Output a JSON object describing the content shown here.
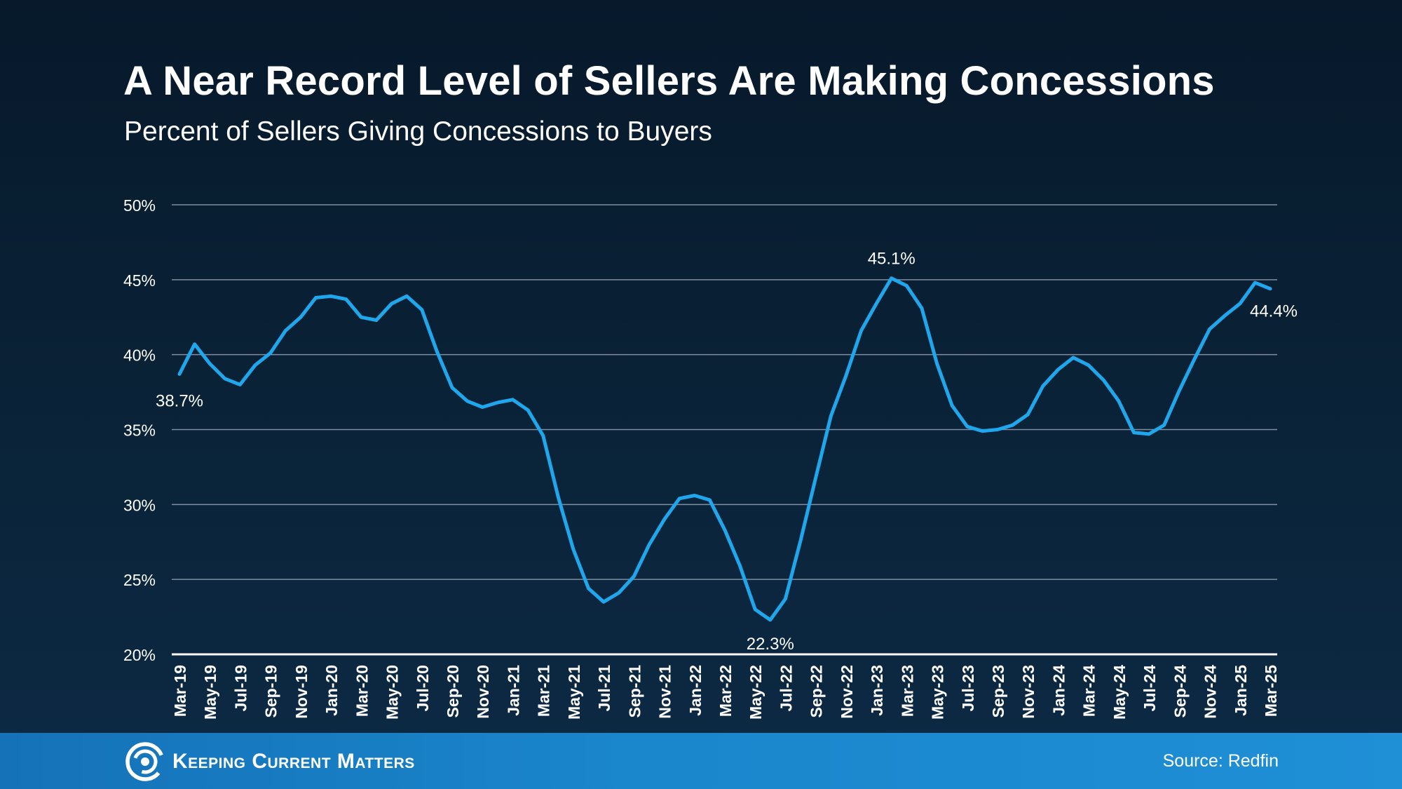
{
  "chart_data": {
    "type": "line",
    "title": "A Near Record Level of Sellers Are Making Concessions",
    "subtitle": "Percent of Sellers Giving Concessions to Buyers",
    "xlabel": "",
    "ylabel": "",
    "ylim": [
      20,
      50
    ],
    "yticks": [
      "20%",
      "25%",
      "30%",
      "35%",
      "40%",
      "45%",
      "50%"
    ],
    "ytick_values": [
      20,
      25,
      30,
      35,
      40,
      45,
      50
    ],
    "grid": true,
    "line_color": "#1ea7ec",
    "x": [
      "Mar-19",
      "Apr-19",
      "May-19",
      "Jun-19",
      "Jul-19",
      "Aug-19",
      "Sep-19",
      "Oct-19",
      "Nov-19",
      "Dec-19",
      "Jan-20",
      "Feb-20",
      "Mar-20",
      "Apr-20",
      "May-20",
      "Jun-20",
      "Jul-20",
      "Aug-20",
      "Sep-20",
      "Oct-20",
      "Nov-20",
      "Dec-20",
      "Jan-21",
      "Feb-21",
      "Mar-21",
      "Apr-21",
      "May-21",
      "Jun-21",
      "Jul-21",
      "Aug-21",
      "Sep-21",
      "Oct-21",
      "Nov-21",
      "Dec-21",
      "Jan-22",
      "Feb-22",
      "Mar-22",
      "Apr-22",
      "May-22",
      "Jun-22",
      "Jul-22",
      "Aug-22",
      "Sep-22",
      "Oct-22",
      "Nov-22",
      "Dec-22",
      "Jan-23",
      "Feb-23",
      "Mar-23",
      "Apr-23",
      "May-23",
      "Jun-23",
      "Jul-23",
      "Aug-23",
      "Sep-23",
      "Oct-23",
      "Nov-23",
      "Dec-23",
      "Jan-24",
      "Feb-24",
      "Mar-24",
      "Apr-24",
      "May-24",
      "Jun-24",
      "Jul-24",
      "Aug-24",
      "Sep-24",
      "Oct-24",
      "Nov-24",
      "Dec-24",
      "Jan-25",
      "Feb-25",
      "Mar-25"
    ],
    "xtick_labels": [
      "Mar-19",
      "May-19",
      "Jul-19",
      "Sep-19",
      "Nov-19",
      "Jan-20",
      "Mar-20",
      "May-20",
      "Jul-20",
      "Sep-20",
      "Nov-20",
      "Jan-21",
      "Mar-21",
      "May-21",
      "Jul-21",
      "Sep-21",
      "Nov-21",
      "Jan-22",
      "Mar-22",
      "May-22",
      "Jul-22",
      "Sep-22",
      "Nov-22",
      "Jan-23",
      "Mar-23",
      "May-23",
      "Jul-23",
      "Sep-23",
      "Nov-23",
      "Jan-24",
      "Mar-24",
      "May-24",
      "Jul-24",
      "Sep-24",
      "Nov-24",
      "Jan-25",
      "Mar-25"
    ],
    "series": [
      {
        "values": [
          38.7,
          40.7,
          39.4,
          38.4,
          38.0,
          39.3,
          40.1,
          41.6,
          42.5,
          43.8,
          43.9,
          43.7,
          42.5,
          42.3,
          43.4,
          43.9,
          43.0,
          40.2,
          37.8,
          36.9,
          36.5,
          36.8,
          37.0,
          36.3,
          34.6,
          30.5,
          27.0,
          24.4,
          23.5,
          24.1,
          25.2,
          27.3,
          29.0,
          30.4,
          30.6,
          30.3,
          28.3,
          25.9,
          23.0,
          22.3,
          23.7,
          27.6,
          31.8,
          35.9,
          38.6,
          41.6,
          43.4,
          45.1,
          44.6,
          43.1,
          39.4,
          36.6,
          35.2,
          34.9,
          35.0,
          35.3,
          36.0,
          37.9,
          39.0,
          39.8,
          39.3,
          38.3,
          36.9,
          34.8,
          34.7,
          35.3,
          37.6,
          39.7,
          41.7,
          42.6,
          43.4,
          44.8,
          44.4
        ]
      }
    ],
    "annotations": [
      {
        "x": "Mar-19",
        "value": 38.7,
        "label": "38.7%"
      },
      {
        "x": "Jun-22",
        "value": 22.3,
        "label": "22.3%"
      },
      {
        "x": "Feb-23",
        "value": 45.1,
        "label": "45.1%"
      },
      {
        "x": "Mar-25",
        "value": 44.4,
        "label": "44.4%"
      }
    ]
  },
  "footer": {
    "logo_text": "Keeping Current Matters",
    "source": "Source: Redfin",
    "logo_icon": "swirl-logo-icon"
  }
}
